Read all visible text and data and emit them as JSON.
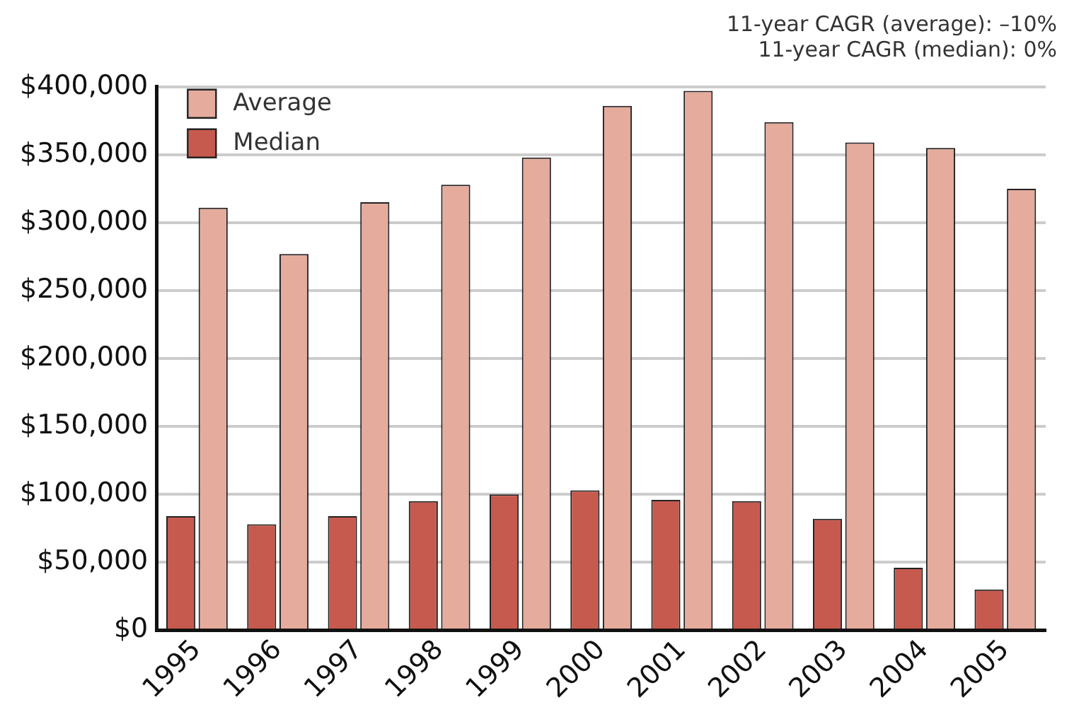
{
  "chart_data": {
    "type": "bar",
    "annotations": [
      "11-year CAGR (average): –10%",
      "11-year CAGR (median): 0%"
    ],
    "categories": [
      "1995",
      "1996",
      "1997",
      "1998",
      "1999",
      "2000",
      "2001",
      "2002",
      "2003",
      "2004",
      "2005"
    ],
    "series": [
      {
        "name": "Median",
        "color": "#c65a4f",
        "values": [
          84000,
          78000,
          84000,
          95000,
          100000,
          103000,
          96000,
          95000,
          82000,
          46000,
          30000
        ]
      },
      {
        "name": "Average",
        "color": "#e5ab9d",
        "values": [
          311000,
          277000,
          315000,
          328000,
          348000,
          386000,
          397000,
          374000,
          359000,
          355000,
          325000
        ]
      }
    ],
    "ylim": [
      0,
      400000
    ],
    "yticks": [
      {
        "value": 0,
        "label": "$0"
      },
      {
        "value": 50000,
        "label": "$50,000"
      },
      {
        "value": 100000,
        "label": "$100,000"
      },
      {
        "value": 150000,
        "label": "$150,000"
      },
      {
        "value": 200000,
        "label": "$200,000"
      },
      {
        "value": 250000,
        "label": "$250,000"
      },
      {
        "value": 300000,
        "label": "$300,000"
      },
      {
        "value": 350000,
        "label": "$350,000"
      },
      {
        "value": 400000,
        "label": "$400,000"
      }
    ],
    "grid": "y",
    "legend": "top left"
  }
}
